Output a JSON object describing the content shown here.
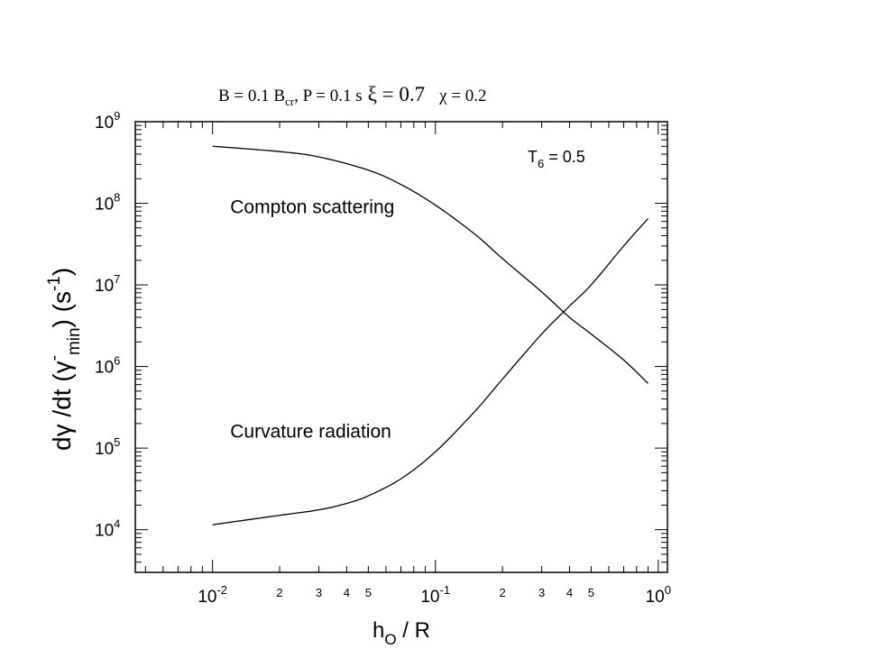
{
  "chart_data": {
    "type": "line",
    "title": {
      "b_part": "B = 0.1 B",
      "b_sub": "cr",
      "p_part": ",  P = 0.1 s",
      "xi_part": "ξ = 0.7",
      "chi_part": "χ = 0.2"
    },
    "annotation": {
      "main": "T",
      "sub": "6",
      "rest": " = 0.5"
    },
    "xlabel": {
      "main": "h",
      "sub": "O",
      "rest": " / R"
    },
    "ylabel": {
      "p1": "dγ /dt (γ",
      "sup1": "-",
      "sub1": "min",
      "p2": ") (s",
      "sup2": "-1",
      "p3": ")"
    },
    "x_scale": "log",
    "y_scale": "log",
    "xlim": [
      0.0045,
      1.1
    ],
    "ylim": [
      3000,
      1000000000
    ],
    "x_ticks_major": [
      {
        "value": 0.01,
        "base": "10",
        "exp": "-2"
      },
      {
        "value": 0.1,
        "base": "10",
        "exp": "-1"
      },
      {
        "value": 1,
        "base": "10",
        "exp": "0"
      }
    ],
    "x_ticks_minor_labels": [
      {
        "value": 0.02,
        "label": "2"
      },
      {
        "value": 0.03,
        "label": "3"
      },
      {
        "value": 0.04,
        "label": "4"
      },
      {
        "value": 0.05,
        "label": "5"
      },
      {
        "value": 0.2,
        "label": "2"
      },
      {
        "value": 0.3,
        "label": "3"
      },
      {
        "value": 0.4,
        "label": "4"
      },
      {
        "value": 0.5,
        "label": "5"
      }
    ],
    "y_ticks_major": [
      {
        "value": 10000,
        "base": "10",
        "exp": "4"
      },
      {
        "value": 100000,
        "base": "10",
        "exp": "5"
      },
      {
        "value": 1000000,
        "base": "10",
        "exp": "6"
      },
      {
        "value": 10000000,
        "base": "10",
        "exp": "7"
      },
      {
        "value": 100000000,
        "base": "10",
        "exp": "8"
      },
      {
        "value": 1000000000,
        "base": "10",
        "exp": "9"
      }
    ],
    "series": [
      {
        "name": "Compton scattering",
        "x": [
          0.01,
          0.02,
          0.03,
          0.05,
          0.07,
          0.1,
          0.15,
          0.2,
          0.3,
          0.4,
          0.5,
          0.7,
          0.9
        ],
        "y": [
          500000000,
          430000000,
          370000000,
          255000000,
          170000000,
          95000000,
          42000000,
          21000000,
          8200000,
          4000000,
          2500000,
          1200000,
          620000
        ],
        "label_x": 0.012,
        "label_y": 90000000
      },
      {
        "name": "Curvature radiation",
        "x": [
          0.01,
          0.02,
          0.03,
          0.04,
          0.05,
          0.07,
          0.1,
          0.15,
          0.2,
          0.3,
          0.4,
          0.5,
          0.7,
          0.9
        ],
        "y": [
          11500,
          15000,
          17500,
          21000,
          26000,
          42000,
          90000,
          280000,
          700000,
          2500000,
          5500000,
          10000000,
          30000000,
          65000000
        ],
        "label_x": 0.012,
        "label_y": 160000
      }
    ]
  }
}
